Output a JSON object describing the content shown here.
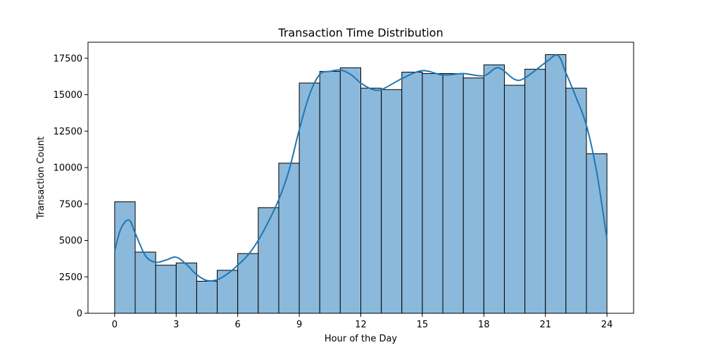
{
  "chart_data": {
    "type": "bar",
    "title": "Transaction Time Distribution",
    "xlabel": "Hour of the Day",
    "ylabel": "Transaction Count",
    "bin_edges": [
      0,
      1,
      2,
      3,
      4,
      5,
      6,
      7,
      8,
      9,
      10,
      11,
      12,
      13,
      14,
      15,
      16,
      17,
      18,
      19,
      20,
      21,
      22,
      23,
      24
    ],
    "values": [
      7650,
      4200,
      3300,
      3450,
      2200,
      2950,
      4100,
      7250,
      10300,
      15800,
      16600,
      16850,
      15450,
      15350,
      16550,
      16450,
      16450,
      16150,
      17050,
      15650,
      16750,
      17750,
      15450,
      10950
    ],
    "kde": {
      "x": [
        0,
        0.3,
        0.7,
        1,
        1.5,
        2,
        2.5,
        3,
        3.5,
        4,
        4.5,
        5,
        5.5,
        6,
        6.5,
        7,
        7.5,
        8,
        8.5,
        9,
        9.5,
        10,
        10.5,
        11,
        11.5,
        12,
        12.5,
        13,
        14,
        15,
        16,
        17,
        18,
        18.7,
        19.5,
        20,
        21,
        21.6,
        22,
        22.5,
        23,
        23.5,
        24
      ],
      "y": [
        4250,
        5800,
        6400,
        5500,
        3950,
        3500,
        3650,
        3850,
        3350,
        2650,
        2250,
        2300,
        2700,
        3300,
        4000,
        5000,
        6300,
        7800,
        9800,
        12600,
        15000,
        16400,
        16600,
        16700,
        16400,
        15800,
        15400,
        15350,
        16100,
        16650,
        16350,
        16450,
        16300,
        16850,
        16050,
        16150,
        17200,
        17700,
        16500,
        14800,
        12900,
        9700,
        5100
      ]
    },
    "xlim": [
      -1.3,
      25.3
    ],
    "ylim": [
      0,
      18600
    ],
    "xticks": [
      0,
      3,
      6,
      9,
      12,
      15,
      18,
      21,
      24
    ],
    "yticks": [
      0,
      2500,
      5000,
      7500,
      10000,
      12500,
      15000,
      17500
    ],
    "grid": false,
    "legend": "none",
    "colors": {
      "bar_fill": "#8bb9db",
      "bar_edge": "#000000",
      "kde_line": "#1f77b4"
    }
  }
}
